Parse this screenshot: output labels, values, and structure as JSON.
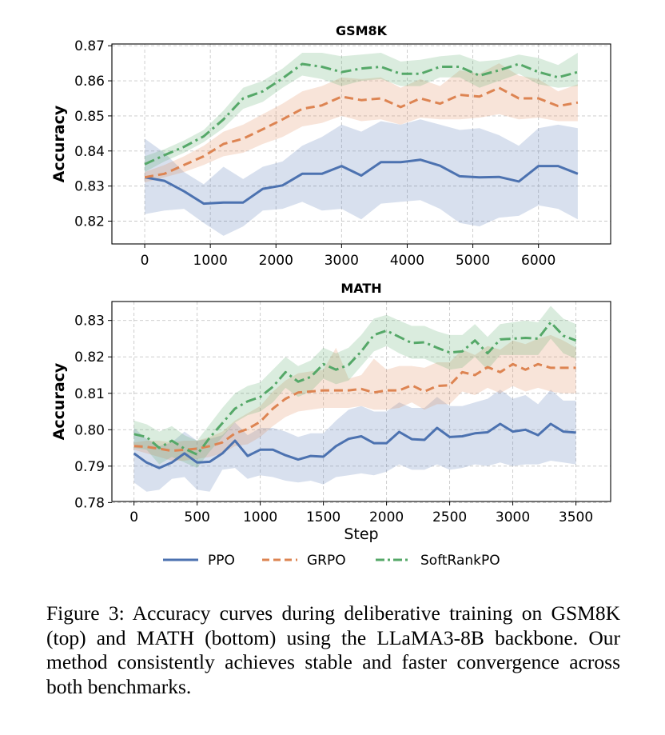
{
  "chart_data": [
    {
      "type": "line",
      "title": "GSM8K",
      "xlabel": "",
      "ylabel": "Accuracy",
      "xlim": [
        -500,
        7100
      ],
      "ylim": [
        0.8135,
        0.8705
      ],
      "xticks": [
        0,
        1000,
        2000,
        3000,
        4000,
        5000,
        6000
      ],
      "yticks": [
        0.82,
        0.83,
        0.84,
        0.85,
        0.86,
        0.87
      ],
      "ytick_labels": [
        "0.82",
        "0.83",
        "0.84",
        "0.85",
        "0.86",
        "0.87"
      ],
      "grid": true,
      "x": [
        0,
        300,
        600,
        900,
        1200,
        1500,
        1800,
        2100,
        2400,
        2700,
        3000,
        3300,
        3600,
        3900,
        4200,
        4500,
        4800,
        5100,
        5400,
        5700,
        6000,
        6300,
        6600
      ],
      "series": [
        {
          "name": "PPO",
          "color": "#4c72b0",
          "style": "solid",
          "values": [
            0.8325,
            0.8315,
            0.8285,
            0.825,
            0.8253,
            0.8253,
            0.8292,
            0.8302,
            0.8335,
            0.8335,
            0.8357,
            0.833,
            0.8368,
            0.8368,
            0.8375,
            0.8358,
            0.8328,
            0.8325,
            0.8326,
            0.8313,
            0.8357,
            0.8357,
            0.8335
          ],
          "lower": [
            0.822,
            0.823,
            0.8235,
            0.8195,
            0.8158,
            0.8185,
            0.823,
            0.8235,
            0.8255,
            0.823,
            0.8235,
            0.8205,
            0.825,
            0.8255,
            0.826,
            0.8235,
            0.8195,
            0.8185,
            0.821,
            0.8215,
            0.8245,
            0.8235,
            0.8205
          ],
          "upper": [
            0.8435,
            0.8395,
            0.834,
            0.8305,
            0.8355,
            0.832,
            0.8355,
            0.837,
            0.8415,
            0.844,
            0.8475,
            0.8455,
            0.8485,
            0.8475,
            0.849,
            0.8475,
            0.846,
            0.8465,
            0.8445,
            0.8415,
            0.8465,
            0.8475,
            0.8465
          ]
        },
        {
          "name": "GRPO",
          "color": "#dd8452",
          "style": "dashed",
          "values": [
            0.8325,
            0.8335,
            0.836,
            0.8385,
            0.842,
            0.8435,
            0.8462,
            0.849,
            0.852,
            0.853,
            0.8555,
            0.8545,
            0.855,
            0.8525,
            0.855,
            0.8535,
            0.856,
            0.8555,
            0.858,
            0.855,
            0.855,
            0.8528,
            0.8538
          ],
          "lower": [
            0.831,
            0.8325,
            0.834,
            0.836,
            0.8385,
            0.8395,
            0.842,
            0.844,
            0.847,
            0.848,
            0.85,
            0.8485,
            0.849,
            0.8475,
            0.8495,
            0.849,
            0.849,
            0.8495,
            0.8505,
            0.849,
            0.8495,
            0.8485,
            0.8485
          ],
          "upper": [
            0.834,
            0.836,
            0.8385,
            0.8415,
            0.8455,
            0.8475,
            0.8505,
            0.8535,
            0.857,
            0.8585,
            0.861,
            0.8605,
            0.861,
            0.858,
            0.8605,
            0.8585,
            0.863,
            0.862,
            0.865,
            0.8615,
            0.8605,
            0.857,
            0.859
          ]
        },
        {
          "name": "SoftRankPO",
          "color": "#55a868",
          "style": "dashdot",
          "values": [
            0.8362,
            0.8388,
            0.8412,
            0.8442,
            0.849,
            0.855,
            0.857,
            0.8607,
            0.8648,
            0.864,
            0.8625,
            0.8635,
            0.864,
            0.862,
            0.862,
            0.864,
            0.864,
            0.8615,
            0.863,
            0.8648,
            0.8625,
            0.861,
            0.8625
          ],
          "lower": [
            0.834,
            0.837,
            0.8395,
            0.8425,
            0.8465,
            0.852,
            0.854,
            0.858,
            0.8615,
            0.8605,
            0.8585,
            0.86,
            0.8605,
            0.8585,
            0.8585,
            0.861,
            0.861,
            0.858,
            0.86,
            0.862,
            0.859,
            0.858,
            0.8585
          ],
          "upper": [
            0.8385,
            0.8405,
            0.843,
            0.846,
            0.8515,
            0.858,
            0.86,
            0.8635,
            0.868,
            0.868,
            0.867,
            0.8675,
            0.868,
            0.8655,
            0.866,
            0.867,
            0.8675,
            0.8655,
            0.866,
            0.8675,
            0.8665,
            0.8645,
            0.868
          ]
        }
      ]
    },
    {
      "type": "line",
      "title": "MATH",
      "xlabel": "Step",
      "ylabel": "Accuracy",
      "xlim": [
        -175,
        3775
      ],
      "ylim": [
        0.7803,
        0.8352
      ],
      "xticks": [
        0,
        500,
        1000,
        1500,
        2000,
        2500,
        3000,
        3500
      ],
      "yticks": [
        0.78,
        0.79,
        0.8,
        0.81,
        0.82,
        0.83
      ],
      "ytick_labels": [
        "0.78",
        "0.79",
        "0.80",
        "0.81",
        "0.82",
        "0.83"
      ],
      "grid": true,
      "x": [
        0,
        100,
        200,
        300,
        400,
        500,
        600,
        700,
        800,
        900,
        1000,
        1100,
        1200,
        1300,
        1400,
        1500,
        1600,
        1700,
        1800,
        1900,
        2000,
        2100,
        2200,
        2300,
        2400,
        2500,
        2600,
        2700,
        2800,
        2900,
        3000,
        3100,
        3200,
        3300,
        3400,
        3500
      ],
      "series": [
        {
          "name": "PPO",
          "color": "#4c72b0",
          "style": "solid",
          "values": [
            0.7935,
            0.791,
            0.7895,
            0.791,
            0.7935,
            0.791,
            0.7912,
            0.7935,
            0.797,
            0.7928,
            0.7945,
            0.7945,
            0.793,
            0.7918,
            0.7928,
            0.7926,
            0.7955,
            0.7975,
            0.7982,
            0.7963,
            0.7963,
            0.7994,
            0.7974,
            0.7972,
            0.8005,
            0.798,
            0.7982,
            0.799,
            0.7993,
            0.8016,
            0.7995,
            0.8,
            0.7985,
            0.8016,
            0.7995,
            0.7992
          ],
          "lower": [
            0.7855,
            0.783,
            0.7835,
            0.7865,
            0.787,
            0.7835,
            0.783,
            0.789,
            0.7895,
            0.7865,
            0.7875,
            0.787,
            0.786,
            0.7855,
            0.786,
            0.785,
            0.787,
            0.7875,
            0.788,
            0.7875,
            0.7885,
            0.7905,
            0.789,
            0.789,
            0.7905,
            0.789,
            0.7895,
            0.7905,
            0.79,
            0.791,
            0.79,
            0.7905,
            0.7905,
            0.7915,
            0.791,
            0.7905
          ],
          "upper": [
            0.8005,
            0.7975,
            0.7955,
            0.7965,
            0.7995,
            0.797,
            0.7975,
            0.7985,
            0.802,
            0.7985,
            0.8005,
            0.8005,
            0.7995,
            0.798,
            0.799,
            0.799,
            0.8025,
            0.8055,
            0.8065,
            0.805,
            0.805,
            0.8075,
            0.806,
            0.806,
            0.809,
            0.8065,
            0.8065,
            0.8075,
            0.8085,
            0.811,
            0.8085,
            0.8095,
            0.807,
            0.811,
            0.808,
            0.808
          ]
        },
        {
          "name": "GRPO",
          "color": "#dd8452",
          "style": "dashed",
          "values": [
            0.7955,
            0.7953,
            0.7948,
            0.7942,
            0.7945,
            0.7948,
            0.7955,
            0.7965,
            0.799,
            0.8002,
            0.8022,
            0.8058,
            0.8085,
            0.8102,
            0.8105,
            0.8108,
            0.8108,
            0.8108,
            0.8112,
            0.8102,
            0.8108,
            0.8108,
            0.8122,
            0.8105,
            0.812,
            0.8122,
            0.8158,
            0.815,
            0.8172,
            0.8158,
            0.818,
            0.8165,
            0.818,
            0.817,
            0.817,
            0.817
          ],
          "lower": [
            0.7945,
            0.7935,
            0.7925,
            0.7915,
            0.7915,
            0.792,
            0.7925,
            0.7935,
            0.7955,
            0.796,
            0.798,
            0.801,
            0.8035,
            0.805,
            0.8055,
            0.806,
            0.806,
            0.806,
            0.8065,
            0.8055,
            0.8055,
            0.806,
            0.8075,
            0.8055,
            0.807,
            0.807,
            0.8105,
            0.8095,
            0.8115,
            0.81,
            0.812,
            0.8105,
            0.8115,
            0.8105,
            0.81,
            0.81
          ],
          "upper": [
            0.7965,
            0.797,
            0.797,
            0.7965,
            0.797,
            0.797,
            0.798,
            0.7995,
            0.8025,
            0.8045,
            0.8065,
            0.8105,
            0.8135,
            0.8155,
            0.816,
            0.8165,
            0.8225,
            0.814,
            0.815,
            0.8195,
            0.8165,
            0.8175,
            0.8175,
            0.817,
            0.8185,
            0.8185,
            0.822,
            0.8205,
            0.823,
            0.822,
            0.8245,
            0.8235,
            0.825,
            0.826,
            0.8245,
            0.8225
          ]
        },
        {
          "name": "SoftRankPO",
          "color": "#55a868",
          "style": "dashdot",
          "values": [
            0.7988,
            0.798,
            0.795,
            0.797,
            0.7948,
            0.7932,
            0.7978,
            0.8018,
            0.8058,
            0.8078,
            0.809,
            0.8118,
            0.8158,
            0.8132,
            0.8145,
            0.818,
            0.8165,
            0.8178,
            0.8215,
            0.826,
            0.8272,
            0.8255,
            0.8238,
            0.824,
            0.8225,
            0.8212,
            0.8215,
            0.8245,
            0.821,
            0.8248,
            0.825,
            0.8252,
            0.825,
            0.8295,
            0.8258,
            0.8245
          ],
          "lower": [
            0.795,
            0.7945,
            0.7905,
            0.7925,
            0.791,
            0.7895,
            0.794,
            0.798,
            0.802,
            0.804,
            0.805,
            0.8075,
            0.8115,
            0.809,
            0.8105,
            0.814,
            0.8125,
            0.8135,
            0.8175,
            0.8215,
            0.823,
            0.821,
            0.8195,
            0.8195,
            0.818,
            0.8165,
            0.817,
            0.82,
            0.8165,
            0.8205,
            0.8205,
            0.8205,
            0.8205,
            0.825,
            0.821,
            0.8195
          ],
          "upper": [
            0.8025,
            0.8015,
            0.7995,
            0.801,
            0.7985,
            0.797,
            0.8015,
            0.806,
            0.81,
            0.812,
            0.813,
            0.8165,
            0.82,
            0.8175,
            0.819,
            0.8225,
            0.821,
            0.8225,
            0.826,
            0.8305,
            0.8315,
            0.83,
            0.8285,
            0.8285,
            0.827,
            0.826,
            0.826,
            0.829,
            0.8255,
            0.829,
            0.8295,
            0.83,
            0.8295,
            0.834,
            0.8305,
            0.829
          ]
        }
      ]
    }
  ],
  "legend": {
    "placement": "bottom-center",
    "entries": [
      {
        "name": "PPO",
        "color": "#4c72b0",
        "style": "solid"
      },
      {
        "name": "GRPO",
        "color": "#dd8452",
        "style": "dashed"
      },
      {
        "name": "SoftRankPO",
        "color": "#55a868",
        "style": "dashdot"
      }
    ]
  },
  "caption": "Figure 3: Accuracy curves during deliberative training on GSM8K (top) and MATH (bottom) using the LLaMA3-8B backbone. Our method consistently achieves stable and faster convergence across both benchmarks."
}
